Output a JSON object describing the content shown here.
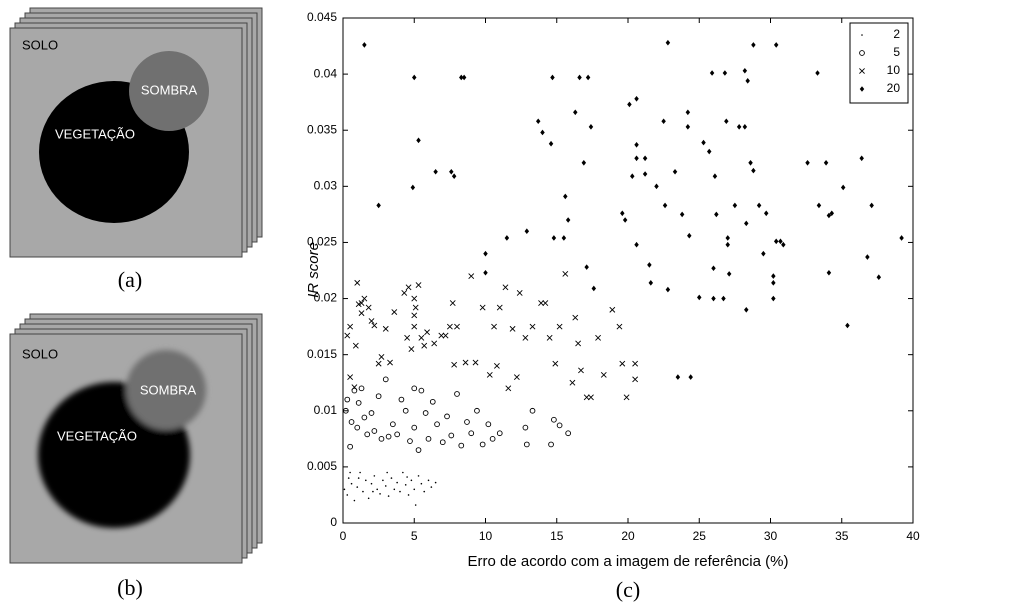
{
  "panels": [
    {
      "label": "(a)",
      "regions": [
        "SOLO",
        "SOMBRA",
        "VEGETAÇÃO"
      ]
    },
    {
      "label": "(b)",
      "regions": [
        "SOLO",
        "SOMBRA",
        "VEGETAÇÃO"
      ]
    }
  ],
  "chart_data": {
    "type": "scatter",
    "panel_label": "(c)",
    "xlabel": "Erro de acordo com a imagem de referência (%)",
    "ylabel": "IR score",
    "xlim": [
      0,
      40
    ],
    "xticks": [
      0,
      5,
      10,
      15,
      20,
      25,
      30,
      35,
      40
    ],
    "ylim": [
      0,
      0.045
    ],
    "yticks": [
      0,
      0.005,
      0.01,
      0.015,
      0.02,
      0.025,
      0.03,
      0.035,
      0.04,
      0.045
    ],
    "legend": "upper right",
    "series": [
      {
        "name": "2",
        "marker": "dot",
        "color": "#000000",
        "x": [
          0.1,
          0.3,
          0.4,
          0.6,
          0.8,
          1,
          1.2,
          1.4,
          1.6,
          1.8,
          2,
          2.2,
          2.4,
          2.6,
          2.8,
          3,
          3.2,
          3.4,
          3.6,
          3.8,
          4,
          4.2,
          4.4,
          4.6,
          4.8,
          5,
          5.1,
          5.3,
          5.5,
          5.7,
          6,
          6.2,
          6.5,
          0.5,
          1.1,
          2.1,
          3.1,
          4.5
        ],
        "values": [
          0.003,
          0.0025,
          0.004,
          0.0035,
          0.002,
          0.0032,
          0.0045,
          0.0028,
          0.0038,
          0.0022,
          0.0035,
          0.0042,
          0.003,
          0.0026,
          0.0038,
          0.0033,
          0.0024,
          0.004,
          0.003,
          0.0036,
          0.0028,
          0.0045,
          0.0034,
          0.0025,
          0.0038,
          0.003,
          0.0016,
          0.0042,
          0.0035,
          0.0028,
          0.0038,
          0.0032,
          0.0036,
          0.0045,
          0.004,
          0.0028,
          0.0045,
          0.0041
        ]
      },
      {
        "name": "5",
        "marker": "circle",
        "color": "#000000",
        "x": [
          0.2,
          0.3,
          0.5,
          0.6,
          0.8,
          1,
          1.1,
          1.3,
          1.5,
          1.7,
          2,
          2.2,
          2.5,
          2.7,
          3,
          3.2,
          3.5,
          3.8,
          4.1,
          4.4,
          4.7,
          5,
          5,
          5.3,
          5.5,
          5.8,
          6,
          6.3,
          6.6,
          7,
          7.3,
          7.6,
          8,
          8.3,
          8.7,
          9,
          9.4,
          9.8,
          10.2,
          10.5,
          11,
          12.8,
          12.9,
          13.3,
          14.6,
          14.8,
          15.2,
          15.8
        ],
        "values": [
          0.01,
          0.011,
          0.0068,
          0.009,
          0.0118,
          0.0085,
          0.0107,
          0.012,
          0.0094,
          0.0079,
          0.0098,
          0.0082,
          0.0113,
          0.0075,
          0.0128,
          0.0077,
          0.0088,
          0.0079,
          0.011,
          0.01,
          0.0073,
          0.012,
          0.0085,
          0.0065,
          0.0118,
          0.0098,
          0.0075,
          0.0108,
          0.0088,
          0.0072,
          0.0095,
          0.0078,
          0.0115,
          0.0069,
          0.009,
          0.008,
          0.01,
          0.007,
          0.0088,
          0.0075,
          0.008,
          0.0085,
          0.007,
          0.01,
          0.007,
          0.0092,
          0.0087,
          0.008
        ]
      },
      {
        "name": "10",
        "marker": "x",
        "color": "#000000",
        "x": [
          0.3,
          0.5,
          0.5,
          0.8,
          0.9,
          1,
          1.1,
          1.3,
          1.3,
          1.5,
          1.8,
          2,
          2.2,
          2.5,
          2.7,
          3,
          3.3,
          3.6,
          4.3,
          4.5,
          4.6,
          4.8,
          5,
          5,
          5,
          5.1,
          5.3,
          5.5,
          5.7,
          5.9,
          6.4,
          6.9,
          7.2,
          7.5,
          7.7,
          7.8,
          8,
          8.6,
          9,
          9.3,
          9.8,
          10.3,
          10.6,
          10.8,
          11,
          11.4,
          11.6,
          11.9,
          12.2,
          12.4,
          12.8,
          13.3,
          13.9,
          14.2,
          14.5,
          14.9,
          15.2,
          15.6,
          16.1,
          16.3,
          16.5,
          16.7,
          17.1,
          17.4,
          17.9,
          18.3,
          18.9,
          19.4,
          19.6,
          19.9,
          20.5,
          20.5
        ],
        "values": [
          0.0167,
          0.0175,
          0.013,
          0.0121,
          0.0158,
          0.0214,
          0.0195,
          0.0187,
          0.0196,
          0.02,
          0.0192,
          0.018,
          0.0176,
          0.0142,
          0.0148,
          0.0173,
          0.0143,
          0.0188,
          0.0205,
          0.0165,
          0.021,
          0.0155,
          0.02,
          0.0185,
          0.0175,
          0.0192,
          0.0212,
          0.0165,
          0.0158,
          0.017,
          0.016,
          0.0167,
          0.0167,
          0.0175,
          0.0196,
          0.0141,
          0.0175,
          0.0143,
          0.022,
          0.0143,
          0.0192,
          0.0132,
          0.0175,
          0.014,
          0.0192,
          0.021,
          0.012,
          0.0173,
          0.013,
          0.0205,
          0.0165,
          0.0175,
          0.0196,
          0.0196,
          0.0165,
          0.0142,
          0.0175,
          0.0222,
          0.0125,
          0.0183,
          0.016,
          0.0136,
          0.0112,
          0.0112,
          0.0165,
          0.0132,
          0.019,
          0.0175,
          0.0142,
          0.0112,
          0.0142,
          0.0128
        ]
      },
      {
        "name": "20",
        "marker": "diamond",
        "color": "#000000",
        "x": [
          1.5,
          5,
          8.3,
          8.5,
          14.7,
          16.6,
          17.2,
          22.8,
          28.8,
          30.4,
          5.3,
          6.5,
          7.6,
          7.8,
          4.9,
          2.5,
          10,
          10,
          11.5,
          12.9,
          13.7,
          14,
          14.6,
          14.8,
          15.6,
          15.8,
          15.5,
          16.3,
          16.9,
          17.1,
          17.4,
          17.6,
          19.6,
          19.8,
          20.1,
          20.3,
          20.6,
          20.6,
          20.6,
          20.6,
          21.2,
          21.2,
          21.5,
          21.6,
          22,
          22.5,
          22.6,
          22.8,
          23.3,
          23.5,
          23.8,
          24.2,
          24.2,
          24.3,
          24.4,
          25,
          25.3,
          25.7,
          25.9,
          26,
          26,
          26.1,
          26.2,
          26.7,
          26.8,
          26.9,
          27,
          27,
          27.1,
          27.5,
          27.8,
          28.2,
          28.2,
          28.3,
          28.4,
          28.3,
          28.6,
          28.8,
          29.2,
          29.5,
          29.7,
          30.2,
          30.2,
          30.2,
          30.4,
          30.7,
          30.9,
          32.6,
          33.3,
          33.4,
          33.9,
          34.1,
          34.1,
          34.3,
          35.1,
          35.4,
          36.4,
          36.8,
          37.1,
          37.6,
          39.2
        ],
        "values": [
          0.0426,
          0.0397,
          0.0397,
          0.0397,
          0.0397,
          0.0397,
          0.0397,
          0.0428,
          0.0426,
          0.0426,
          0.0341,
          0.0313,
          0.0313,
          0.0309,
          0.0299,
          0.0283,
          0.024,
          0.0223,
          0.0254,
          0.026,
          0.0358,
          0.0348,
          0.0338,
          0.0254,
          0.0291,
          0.027,
          0.0254,
          0.0366,
          0.0321,
          0.0228,
          0.0353,
          0.0209,
          0.0276,
          0.027,
          0.0373,
          0.0309,
          0.0378,
          0.0337,
          0.0325,
          0.0248,
          0.0325,
          0.0311,
          0.023,
          0.0214,
          0.03,
          0.0358,
          0.0283,
          0.0208,
          0.0313,
          0.013,
          0.0275,
          0.0366,
          0.0353,
          0.0256,
          0.013,
          0.0201,
          0.0339,
          0.0331,
          0.0401,
          0.0227,
          0.02,
          0.0309,
          0.0275,
          0.02,
          0.0401,
          0.0358,
          0.0254,
          0.0248,
          0.0222,
          0.0283,
          0.0353,
          0.0353,
          0.0403,
          0.0267,
          0.0394,
          0.019,
          0.0321,
          0.0314,
          0.0283,
          0.024,
          0.0276,
          0.0214,
          0.022,
          0.02,
          0.0251,
          0.0251,
          0.0248,
          0.0321,
          0.0401,
          0.0283,
          0.0321,
          0.0274,
          0.0223,
          0.0276,
          0.0299,
          0.0176,
          0.0325,
          0.0237,
          0.0283,
          0.0219,
          0.0254
        ]
      }
    ]
  }
}
